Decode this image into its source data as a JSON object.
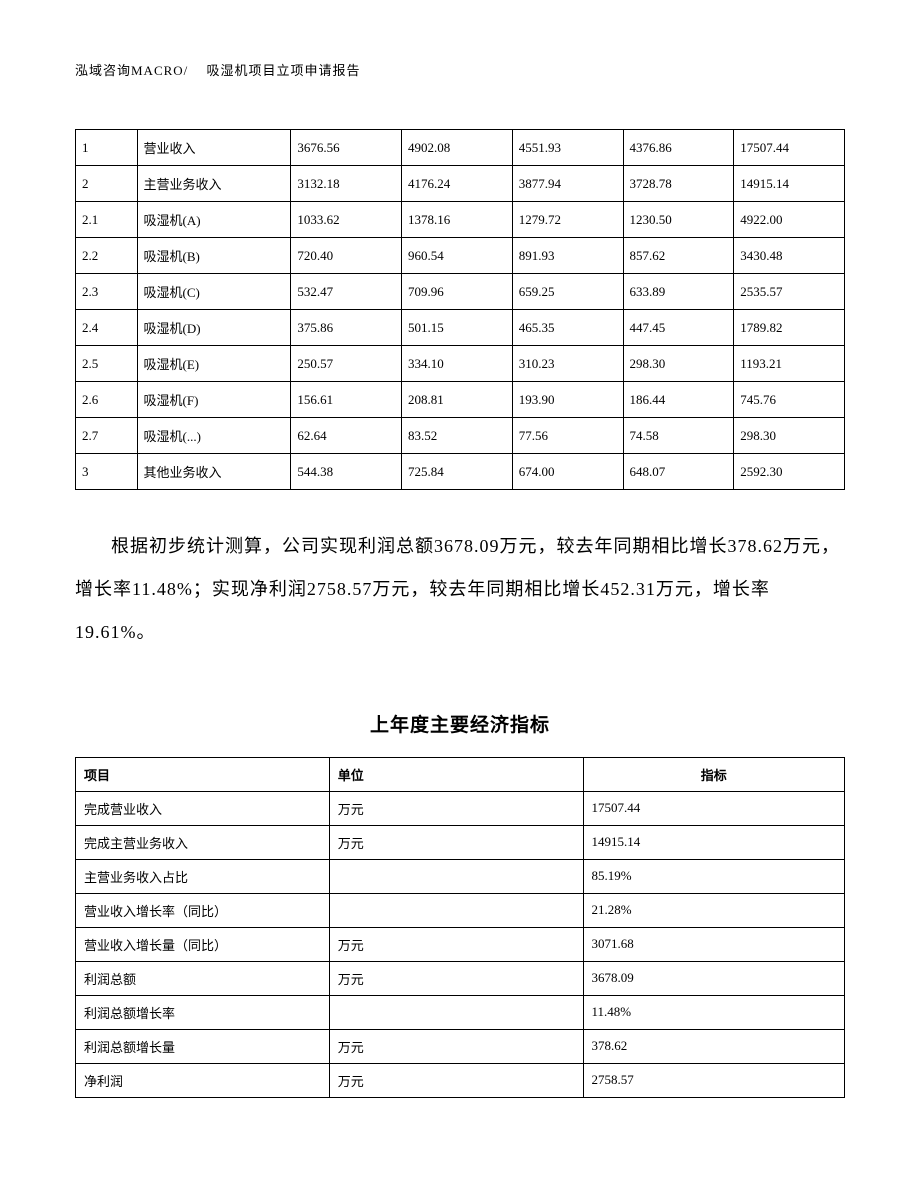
{
  "header": "泓域咨询MACRO/　 吸湿机项目立项申请报告",
  "table1": {
    "rows": [
      [
        "1",
        "营业收入",
        "3676.56",
        "4902.08",
        "4551.93",
        "4376.86",
        "17507.44"
      ],
      [
        "2",
        "主营业务收入",
        "3132.18",
        "4176.24",
        "3877.94",
        "3728.78",
        "14915.14"
      ],
      [
        "2.1",
        "吸湿机(A)",
        "1033.62",
        "1378.16",
        "1279.72",
        "1230.50",
        "4922.00"
      ],
      [
        "2.2",
        "吸湿机(B)",
        "720.40",
        "960.54",
        "891.93",
        "857.62",
        "3430.48"
      ],
      [
        "2.3",
        "吸湿机(C)",
        "532.47",
        "709.96",
        "659.25",
        "633.89",
        "2535.57"
      ],
      [
        "2.4",
        "吸湿机(D)",
        "375.86",
        "501.15",
        "465.35",
        "447.45",
        "1789.82"
      ],
      [
        "2.5",
        "吸湿机(E)",
        "250.57",
        "334.10",
        "310.23",
        "298.30",
        "1193.21"
      ],
      [
        "2.6",
        "吸湿机(F)",
        "156.61",
        "208.81",
        "193.90",
        "186.44",
        "745.76"
      ],
      [
        "2.7",
        "吸湿机(...)",
        "62.64",
        "83.52",
        "77.56",
        "74.58",
        "298.30"
      ],
      [
        "3",
        "其他业务收入",
        "544.38",
        "725.84",
        "674.00",
        "648.07",
        "2592.30"
      ]
    ]
  },
  "paragraph": "根据初步统计测算，公司实现利润总额3678.09万元，较去年同期相比增长378.62万元，增长率11.48%；实现净利润2758.57万元，较去年同期相比增长452.31万元，增长率19.61%。",
  "section_title": "上年度主要经济指标",
  "table2": {
    "headers": [
      "项目",
      "单位",
      "指标"
    ],
    "rows": [
      [
        "完成营业收入",
        "万元",
        "17507.44"
      ],
      [
        "完成主营业务收入",
        "万元",
        "14915.14"
      ],
      [
        "主营业务收入占比",
        "",
        "85.19%"
      ],
      [
        "营业收入增长率（同比）",
        "",
        "21.28%"
      ],
      [
        "营业收入增长量（同比）",
        "万元",
        "3071.68"
      ],
      [
        "利润总额",
        "万元",
        "3678.09"
      ],
      [
        "利润总额增长率",
        "",
        "11.48%"
      ],
      [
        "利润总额增长量",
        "万元",
        "378.62"
      ],
      [
        "净利润",
        "万元",
        "2758.57"
      ]
    ]
  }
}
